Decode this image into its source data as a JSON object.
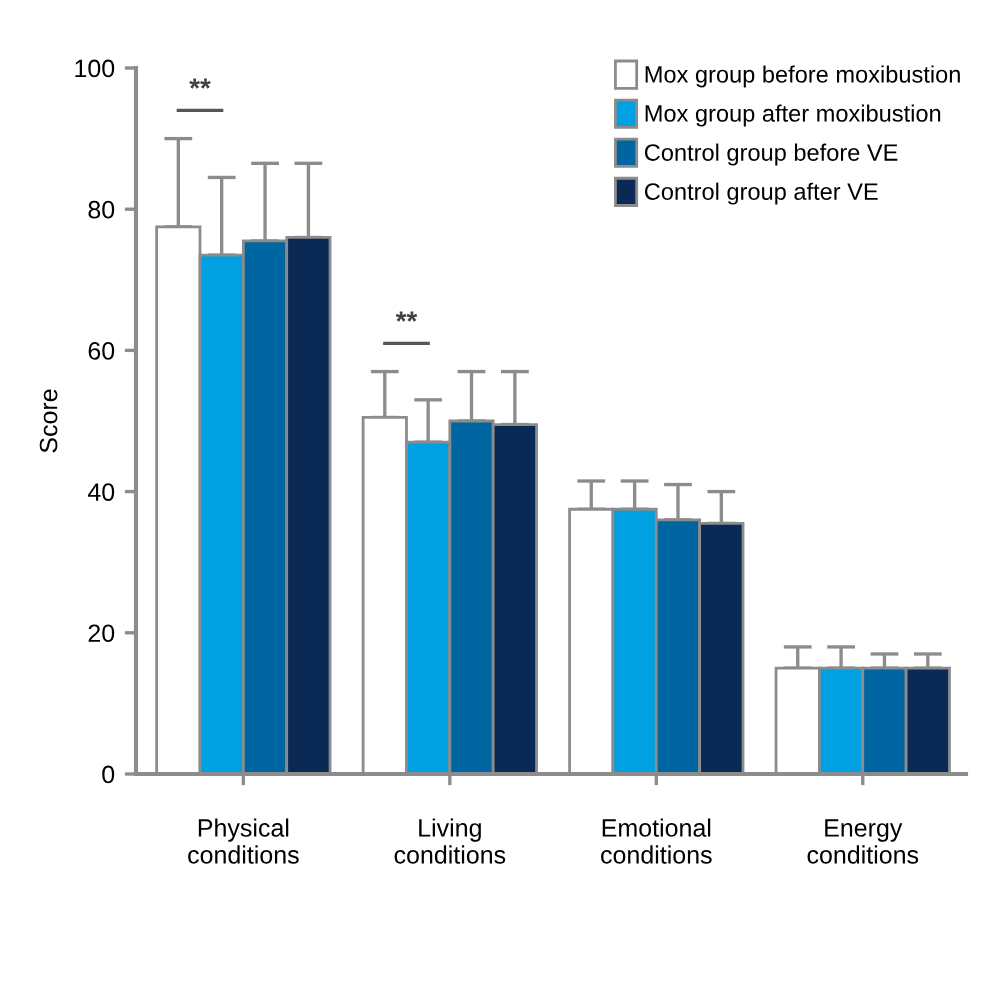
{
  "chart_data": {
    "type": "bar",
    "ylabel": "Score",
    "categories": [
      "Physical\nconditions",
      "Living\nconditions",
      "Emotional\nconditions",
      "Energy\nconditions"
    ],
    "series": [
      {
        "name": "Mox group before moxibustion",
        "color": "#ffffff",
        "values": [
          77.5,
          50.5,
          37.5,
          15
        ],
        "errors": [
          [
            77.5,
            90
          ],
          [
            50.5,
            57
          ],
          [
            37.5,
            41.5
          ],
          [
            15,
            18
          ]
        ]
      },
      {
        "name": "Mox group after moxibustion",
        "color": "#00a0e3",
        "values": [
          73.5,
          47,
          37.5,
          15
        ],
        "errors": [
          [
            73.5,
            84.5
          ],
          [
            47,
            53
          ],
          [
            37.5,
            41.5
          ],
          [
            15,
            18
          ]
        ]
      },
      {
        "name": "Control group before VE",
        "color": "#0066a1",
        "values": [
          75.5,
          50,
          36,
          15
        ],
        "errors": [
          [
            75.5,
            86.5
          ],
          [
            50,
            57
          ],
          [
            36,
            41
          ],
          [
            15,
            17
          ]
        ]
      },
      {
        "name": "Control group after VE",
        "color": "#0a2a55",
        "values": [
          76,
          49.5,
          35.5,
          15
        ],
        "errors": [
          [
            76,
            86.5
          ],
          [
            49.5,
            57
          ],
          [
            35.5,
            40
          ],
          [
            15,
            17
          ]
        ]
      }
    ],
    "ylim": [
      0,
      100
    ],
    "yticks": [
      0,
      20,
      40,
      60,
      80,
      100
    ],
    "annotations": [
      "**",
      "**"
    ],
    "legend": "top right",
    "grid": false
  }
}
